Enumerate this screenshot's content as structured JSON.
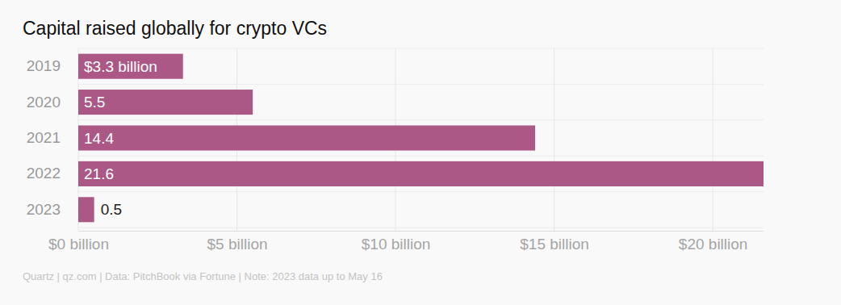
{
  "chart_data": {
    "type": "bar",
    "orientation": "horizontal",
    "title": "Capital raised globally for crypto VCs",
    "categories": [
      "2019",
      "2020",
      "2021",
      "2022",
      "2023"
    ],
    "values": [
      3.3,
      5.5,
      14.4,
      21.6,
      0.5
    ],
    "value_labels": [
      "$3.3 billion",
      "5.5",
      "14.4",
      "21.6",
      "0.5"
    ],
    "data_labels": true,
    "color": "#ab5887",
    "xlim": [
      0,
      21.6
    ],
    "xticks": [
      {
        "value": 0,
        "label": "$0 billion"
      },
      {
        "value": 5,
        "label": "$5 billion"
      },
      {
        "value": 10,
        "label": "$10 billion"
      },
      {
        "value": 15,
        "label": "$15 billion"
      },
      {
        "value": 20,
        "label": "$20 billion"
      }
    ],
    "grid": true,
    "annotations": [
      "Quartz | qz.com | Data: PitchBook via Fortune | Note: 2023 data up to May 16"
    ]
  }
}
